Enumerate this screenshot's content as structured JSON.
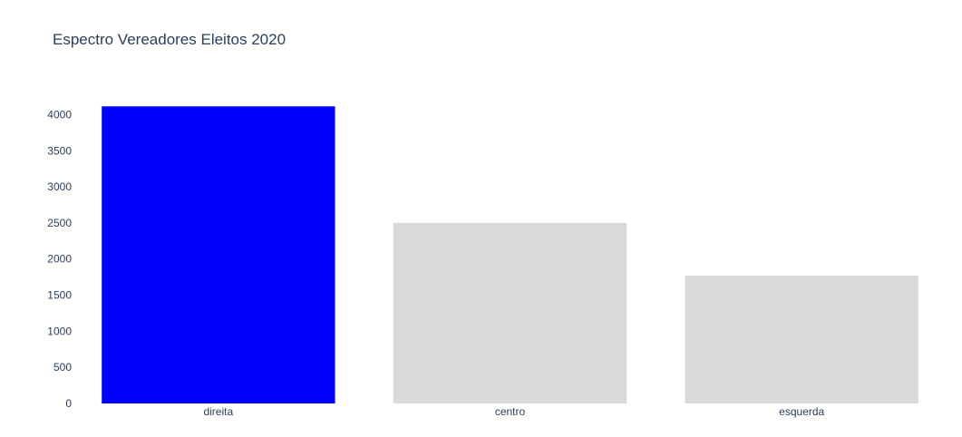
{
  "chart_data": {
    "type": "bar",
    "title": "Espectro Vereadores Eleitos 2020",
    "xlabel": "",
    "ylabel": "",
    "categories": [
      "direita",
      "centro",
      "esquerda"
    ],
    "values": [
      4115,
      2500,
      1770
    ],
    "colors": [
      "#0000ff",
      "#d9d9d9",
      "#d9d9d9"
    ],
    "yticks": [
      0,
      500,
      1000,
      1500,
      2000,
      2500,
      3000,
      3500,
      4000
    ],
    "ylim": [
      0,
      4332
    ],
    "grid": false,
    "legend": "none"
  }
}
